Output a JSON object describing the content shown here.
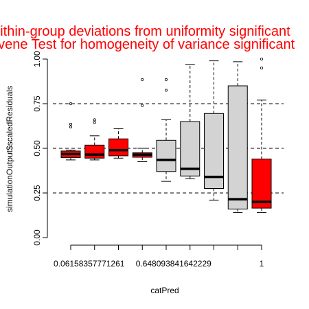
{
  "chart_data": {
    "type": "box",
    "title_lines": [
      "Within-group deviations from uniformity significant",
      "Levene Test for homogeneity of variance significant"
    ],
    "xlabel": "catPred",
    "ylabel": "simulationOutput$scaledResiduals",
    "ylim": [
      0,
      1
    ],
    "yticks": [
      "0.00",
      "0.25",
      "0.50",
      "0.75",
      "1.00"
    ],
    "xtick_labels": [
      "0.06158357771261",
      "0.648093841642229",
      "1"
    ],
    "reference_lines": [
      0.25,
      0.5,
      0.75
    ],
    "colors": {
      "flagged": "#ff0000",
      "normal": "#d3d3d3",
      "title": "#ff0000"
    },
    "boxes": [
      {
        "group": 1,
        "flagged": true,
        "whisker_low": 0.435,
        "q1": 0.448,
        "median": 0.468,
        "q3": 0.485,
        "whisker_high": 0.49,
        "outliers": [
          0.62,
          0.635,
          0.75
        ]
      },
      {
        "group": 2,
        "flagged": true,
        "whisker_low": 0.435,
        "q1": 0.445,
        "median": 0.465,
        "q3": 0.518,
        "whisker_high": 0.57,
        "outliers": [
          0.645,
          0.66
        ]
      },
      {
        "group": 3,
        "flagged": true,
        "whisker_low": 0.445,
        "q1": 0.458,
        "median": 0.49,
        "q3": 0.553,
        "whisker_high": 0.61,
        "outliers": []
      },
      {
        "group": 4,
        "flagged": true,
        "whisker_low": 0.425,
        "q1": 0.45,
        "median": 0.465,
        "q3": 0.475,
        "whisker_high": 0.5,
        "outliers": [
          0.74,
          0.885
        ]
      },
      {
        "group": 5,
        "flagged": false,
        "whisker_low": 0.315,
        "q1": 0.37,
        "median": 0.435,
        "q3": 0.545,
        "whisker_high": 0.66,
        "outliers": [
          0.825,
          0.885
        ]
      },
      {
        "group": 6,
        "flagged": false,
        "whisker_low": 0.33,
        "q1": 0.345,
        "median": 0.385,
        "q3": 0.65,
        "whisker_high": 0.97,
        "outliers": []
      },
      {
        "group": 7,
        "flagged": false,
        "whisker_low": 0.21,
        "q1": 0.275,
        "median": 0.34,
        "q3": 0.695,
        "whisker_high": 0.99,
        "outliers": []
      },
      {
        "group": 8,
        "flagged": false,
        "whisker_low": 0.14,
        "q1": 0.16,
        "median": 0.215,
        "q3": 0.85,
        "whisker_high": 0.985,
        "outliers": []
      },
      {
        "group": 9,
        "flagged": true,
        "whisker_low": 0.14,
        "q1": 0.165,
        "median": 0.2,
        "q3": 0.44,
        "whisker_high": 0.77,
        "outliers": [
          0.95,
          1.0
        ]
      }
    ]
  }
}
